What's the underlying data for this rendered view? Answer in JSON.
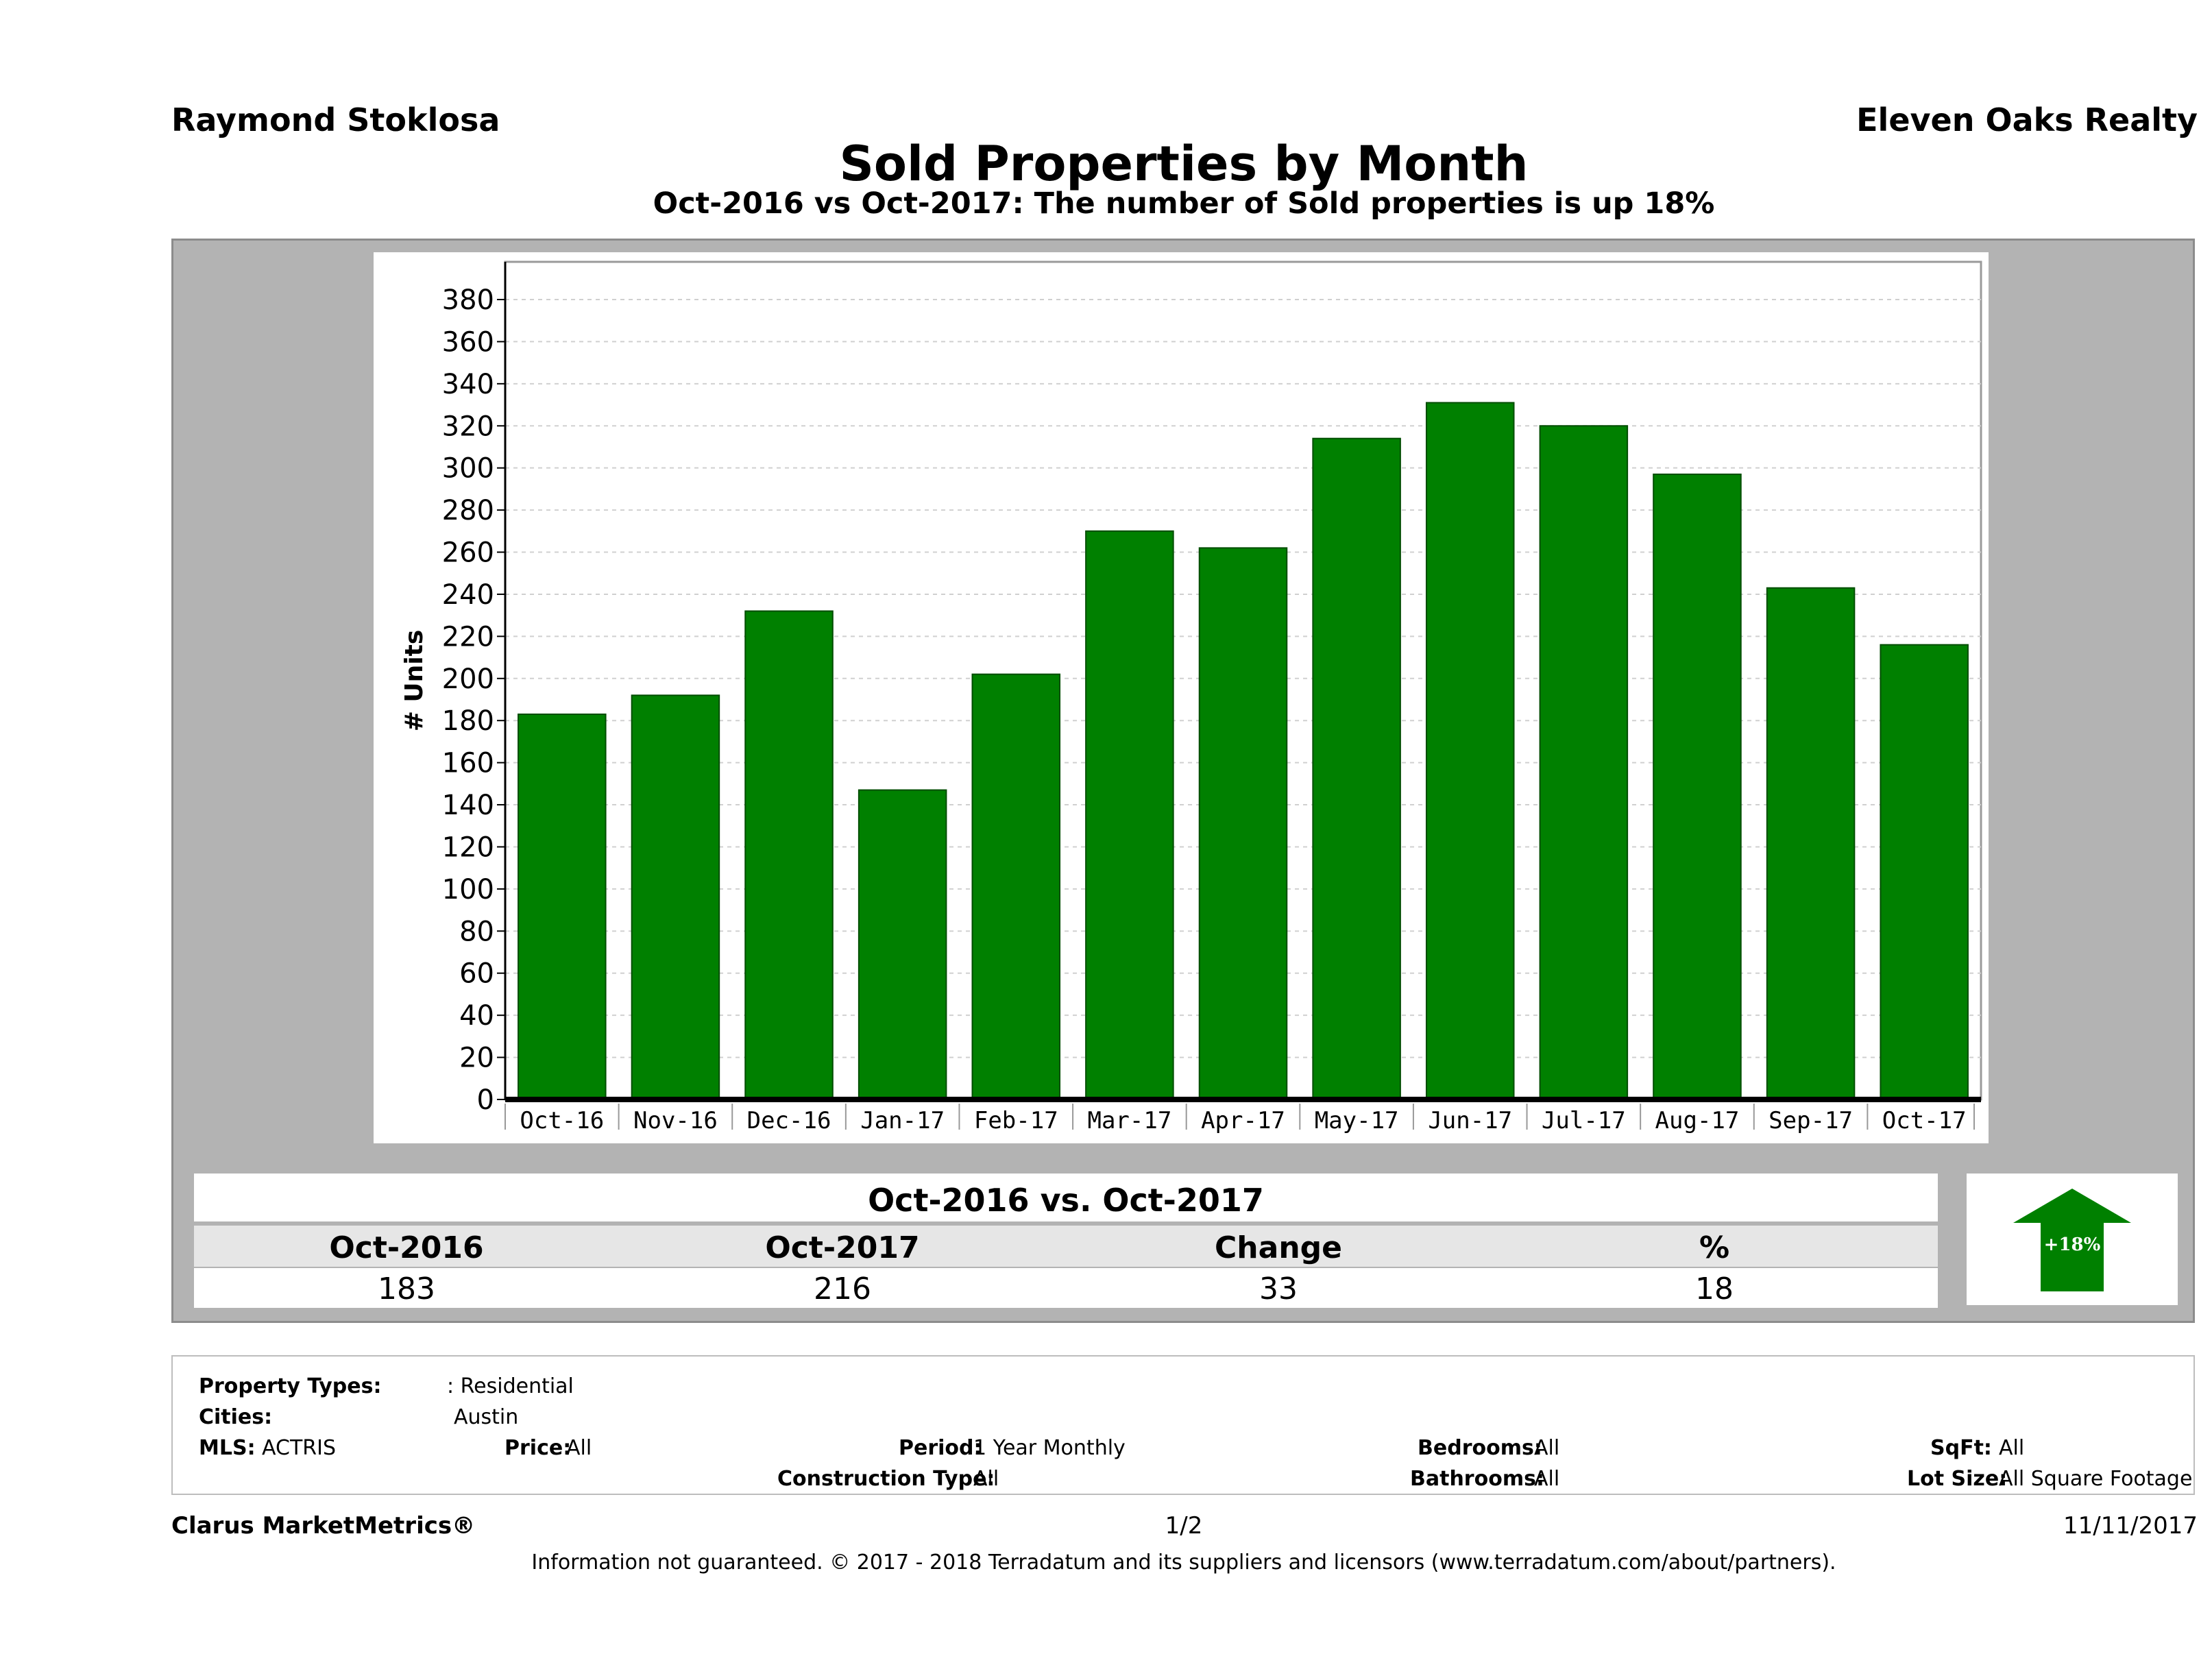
{
  "header": {
    "agent": "Raymond Stoklosa",
    "broker": "Eleven Oaks Realty"
  },
  "colors": {
    "bar": "#008000",
    "panel": "#b3b3b3",
    "arrow": "#008000"
  },
  "chart_data": {
    "type": "bar",
    "title": "Sold Properties by Month",
    "subtitle": "Oct-2016 vs Oct-2017: The number of Sold  properties is up 18%",
    "ylabel": "# Units",
    "xlabel": "",
    "ylim": [
      0,
      380
    ],
    "yticks": [
      0,
      20,
      40,
      60,
      80,
      100,
      120,
      140,
      160,
      180,
      200,
      220,
      240,
      260,
      280,
      300,
      320,
      340,
      360,
      380
    ],
    "grid": true,
    "categories": [
      "Oct-16",
      "Nov-16",
      "Dec-16",
      "Jan-17",
      "Feb-17",
      "Mar-17",
      "Apr-17",
      "May-17",
      "Jun-17",
      "Jul-17",
      "Aug-17",
      "Sep-17",
      "Oct-17"
    ],
    "values": [
      183,
      192,
      232,
      147,
      202,
      270,
      262,
      314,
      331,
      320,
      297,
      243,
      216
    ]
  },
  "summary": {
    "heading": "Oct-2016 vs. Oct-2017",
    "labels": [
      "Oct-2016",
      "Oct-2017",
      "Change",
      "%"
    ],
    "values": [
      "183",
      "216",
      "33",
      "18"
    ],
    "badge": "+18%"
  },
  "filters": {
    "property_types_label": "Property Types:",
    "property_types_value": ": Residential",
    "cities_label": "Cities:",
    "cities_value": "Austin",
    "mls_label": "MLS:",
    "mls_value": "ACTRIS",
    "price_label": "Price:",
    "price_value": "All",
    "period_label": "Period:",
    "period_value": "1 Year Monthly",
    "construction_label": "Construction Type:",
    "construction_value": "All",
    "bedrooms_label": "Bedrooms:",
    "bedrooms_value": "All",
    "bathrooms_label": "Bathrooms:",
    "bathrooms_value": "All",
    "sqft_label": "SqFt:",
    "sqft_value": "All",
    "lotsize_label": "Lot Size:",
    "lotsize_value": "All Square Footage"
  },
  "footer": {
    "brand": "Clarus MarketMetrics®",
    "page": "1/2",
    "date": "11/11/2017",
    "disclaimer": "Information not guaranteed. © 2017 - 2018 Terradatum and its suppliers and licensors (www.terradatum.com/about/partners)."
  }
}
